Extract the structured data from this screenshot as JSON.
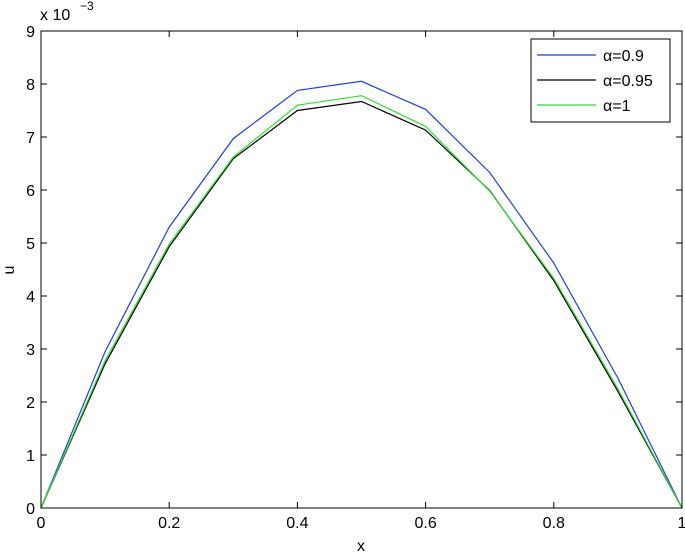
{
  "chart_data": {
    "type": "line",
    "title": "",
    "xlabel": "x",
    "ylabel": "u",
    "y_multiplier_label": "x 10",
    "y_multiplier_exponent": "−3",
    "xlim": [
      0,
      1
    ],
    "ylim": [
      0,
      9
    ],
    "x_ticks": [
      0,
      0.2,
      0.4,
      0.6,
      0.8,
      1
    ],
    "x_tick_labels": [
      "0",
      "0.2",
      "0.4",
      "0.6",
      "0.8",
      "1"
    ],
    "y_ticks": [
      0,
      1,
      2,
      3,
      4,
      5,
      6,
      7,
      8,
      9
    ],
    "y_tick_labels": [
      "0",
      "1",
      "2",
      "3",
      "4",
      "5",
      "6",
      "7",
      "8",
      "9"
    ],
    "grid": false,
    "legend_position": "top-right",
    "x": [
      0,
      0.1,
      0.2,
      0.3,
      0.4,
      0.5,
      0.6,
      0.7,
      0.8,
      0.9,
      1.0
    ],
    "series": [
      {
        "name": "α=0.9",
        "color": "#1f3fe6",
        "values": [
          0,
          2.95,
          5.3,
          6.97,
          7.88,
          8.05,
          7.52,
          6.33,
          4.62,
          2.45,
          0
        ]
      },
      {
        "name": "α=0.95",
        "color": "#000000",
        "values": [
          0,
          2.72,
          4.93,
          6.59,
          7.5,
          7.67,
          7.13,
          5.99,
          4.29,
          2.2,
          0
        ]
      },
      {
        "name": "α=1",
        "color": "#33dd33",
        "values": [
          0,
          2.78,
          4.98,
          6.62,
          7.6,
          7.78,
          7.2,
          5.98,
          4.33,
          2.25,
          0
        ]
      }
    ]
  }
}
